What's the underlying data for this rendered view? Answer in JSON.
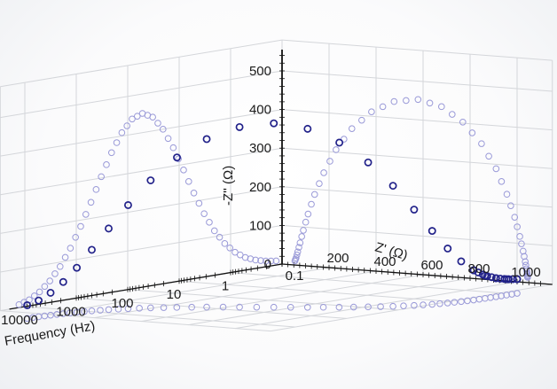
{
  "chart_data": {
    "type": "scatter",
    "title": "",
    "xlabel": "Frequency (Hz)",
    "ylabel": "Z' (Ω)",
    "zlabel": "-Z'' (Ω)",
    "x_axis_scale": "log",
    "x_ticks": [
      "0.1",
      "1",
      "10",
      "100",
      "1000",
      "10000"
    ],
    "y_ticks": [
      "200",
      "400",
      "600",
      "800",
      "1000"
    ],
    "z_ticks": [
      "0",
      "100",
      "200",
      "300",
      "400",
      "500"
    ],
    "xlim": [
      0.1,
      10000
    ],
    "ylim": [
      0,
      1000
    ],
    "zlim": [
      0,
      500
    ],
    "grid": true,
    "marker": "open-circle",
    "series": [
      {
        "points": [
          {
            "f": 10000,
            "zre": 10,
            "zim": 4
          },
          {
            "f": 6310,
            "zre": 15,
            "zim": 12
          },
          {
            "f": 3981,
            "zre": 22,
            "zim": 28
          },
          {
            "f": 2512,
            "zre": 32,
            "zim": 52
          },
          {
            "f": 1585,
            "zre": 46,
            "zim": 85
          },
          {
            "f": 1000,
            "zre": 66,
            "zim": 128
          },
          {
            "f": 631,
            "zre": 94,
            "zim": 180
          },
          {
            "f": 398,
            "zre": 133,
            "zim": 238
          },
          {
            "f": 251,
            "zre": 185,
            "zim": 300
          },
          {
            "f": 158,
            "zre": 253,
            "zim": 358
          },
          {
            "f": 100,
            "zre": 336,
            "zim": 405
          },
          {
            "f": 63.1,
            "zre": 432,
            "zim": 436
          },
          {
            "f": 39.8,
            "zre": 534,
            "zim": 446
          },
          {
            "f": 25.1,
            "zre": 634,
            "zim": 432
          },
          {
            "f": 15.8,
            "zre": 725,
            "zim": 396
          },
          {
            "f": 10,
            "zre": 804,
            "zim": 344
          },
          {
            "f": 6.31,
            "zre": 866,
            "zim": 282
          },
          {
            "f": 3.98,
            "zre": 912,
            "zim": 218
          },
          {
            "f": 2.51,
            "zre": 945,
            "zim": 160
          },
          {
            "f": 1.58,
            "zre": 967,
            "zim": 111
          },
          {
            "f": 1,
            "zre": 981,
            "zim": 74
          },
          {
            "f": 0.631,
            "zre": 990,
            "zim": 47
          },
          {
            "f": 0.398,
            "zre": 995,
            "zim": 29
          },
          {
            "f": 0.251,
            "zre": 998,
            "zim": 18
          },
          {
            "f": 0.158,
            "zre": 999,
            "zim": 11
          },
          {
            "f": 0.1,
            "zre": 1000,
            "zim": 7
          }
        ]
      }
    ],
    "projections": [
      "Z'-Z'' plane (Nyquist)",
      "f-Z'' plane (Bode)",
      "f-Z' plane (floor)"
    ]
  },
  "colors": {
    "marker_strong": "#22228a",
    "marker_light": "#9a9ad8",
    "grid": "#d4d6da",
    "axis": "#111111"
  }
}
